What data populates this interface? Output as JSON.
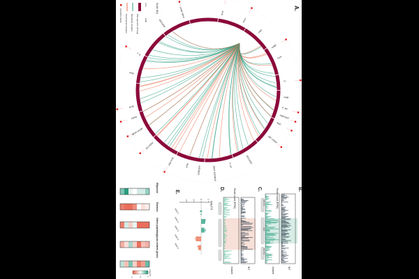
{
  "colors": {
    "ring": "#8b0a3a",
    "beneficial": "#2a9d7f",
    "detrimental": "#e8704f",
    "lethal": "#e01b1b",
    "wt_track": "#2b3a4a"
  },
  "panels": {
    "a": "A.",
    "b": "B.",
    "c": "C.",
    "d": "D.",
    "e": "E."
  },
  "legend": {
    "scale_title": "Scale (Kb)",
    "scale_low": "Low",
    "scale_high": "High",
    "items": [
      "CNA genome (strong)",
      "Beneficial mutation",
      "Detrimental mutation",
      "Synthetic lethal"
    ]
  },
  "genes": [
    {
      "label": "lexA",
      "angle": -79,
      "lethal": true
    },
    {
      "label": "recA",
      "angle": -62,
      "lethal": true
    },
    {
      "label": "cfaA",
      "angle": -48,
      "lethal": false
    },
    {
      "label": "mdtB",
      "angle": -33,
      "lethal": true
    },
    {
      "label": "rcsA",
      "angle": -24,
      "lethal": false
    },
    {
      "label": "Pₓ",
      "angle": -6,
      "lethal": true
    },
    {
      "label": "nfsB",
      "angle": 6,
      "lethal": false
    },
    {
      "label": "P_lac",
      "angle": 14,
      "lethal": true
    },
    {
      "label": "A5D1567",
      "angle": 20,
      "lethal": true
    },
    {
      "label": "fadC",
      "angle": 26,
      "lethal": true
    },
    {
      "label": "eltC ompA",
      "angle": 38,
      "lethal": true
    },
    {
      "label": "A5D1032",
      "angle": 60,
      "lethal": false
    },
    {
      "label": "P_trc",
      "angle": 74,
      "lethal": false
    },
    {
      "label": "pbpA A5D0816",
      "angle": 86,
      "lethal": false
    },
    {
      "label": "A5D0815",
      "angle": 97,
      "lethal": false
    },
    {
      "label": "rbsA",
      "angle": 106,
      "lethal": false
    },
    {
      "label": "fimA ftsE",
      "angle": 118,
      "lethal": true
    },
    {
      "label": "A5D1725",
      "angle": 137,
      "lethal": true
    },
    {
      "label": "gpmA mrdB",
      "angle": 150,
      "lethal": true
    },
    {
      "label": "ftsW2",
      "angle": 160,
      "lethal": true
    },
    {
      "label": "gyrA",
      "angle": 168,
      "lethal": true
    },
    {
      "label": "fhuA",
      "angle": 193,
      "lethal": false
    },
    {
      "label": "P_c",
      "angle": 208,
      "lethal": true
    },
    {
      "label": "A5D1205",
      "angle": 236,
      "lethal": false
    },
    {
      "label": "malG dnaK",
      "angle": 252,
      "lethal": true
    }
  ],
  "panel_b": {
    "ylabel": "Read count (RPM)",
    "tracks": [
      "WT",
      "mutant"
    ],
    "genes": [
      "A5D0815",
      "pbpA",
      "A5D0816"
    ]
  },
  "panel_c": {
    "ylabel": "Read count (RPM)",
    "tracks": [
      "WT",
      "mutant"
    ]
  },
  "panel_e": {
    "xlabel": "Log₂(CI)",
    "ticks": [
      "-4",
      "-2",
      "0",
      "2"
    ],
    "categories": [
      "strain 1",
      "strain 2",
      "strain 3",
      "strain 4",
      "strain 5"
    ],
    "values": [
      0.1,
      1.1,
      0.9,
      -1.4,
      -0.8
    ]
  },
  "heatmap": {
    "groups": [
      "Ellipsoid",
      "Division",
      "Other peptidoglycan-related genes"
    ],
    "colorbar_label": "Log₂FC",
    "colorbar_ticks": [
      "-1",
      "0",
      "1"
    ],
    "rows": [
      {
        "values": [
          0.6,
          1.0,
          0.1,
          0.0,
          0.2,
          0.2,
          0.5
        ]
      },
      {
        "values": [
          -0.8,
          -0.9,
          -0.9,
          -0.7,
          0.0,
          -0.2,
          -0.1
        ]
      },
      {
        "values": [
          -0.8,
          0.2,
          -0.3,
          0.1,
          -0.9,
          -0.9,
          -0.9
        ]
      },
      {
        "values": [
          -0.5,
          -0.2,
          0.4,
          -0.3,
          -0.9,
          -0.4,
          -0.5
        ]
      },
      {
        "values": [
          0.3,
          -0.4,
          0.6,
          -0.3,
          -0.8,
          -0.6,
          0.7
        ]
      }
    ]
  }
}
